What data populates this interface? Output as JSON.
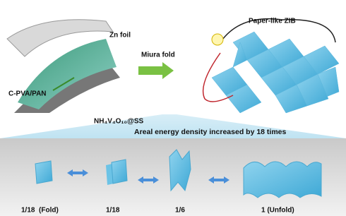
{
  "top": {
    "zn_label": "Zn foil",
    "separator_label": "C-PVA/PAN",
    "cathode_label": "NH₄V₄O₁₀@SS",
    "fold_label": "Miura fold",
    "device_label": "Paper-like ZIB"
  },
  "banner": "Areal energy density increased by 18 times",
  "stages": [
    "1/18  (Fold)",
    "1/18",
    "1/6",
    "1 (Unfold)"
  ]
}
